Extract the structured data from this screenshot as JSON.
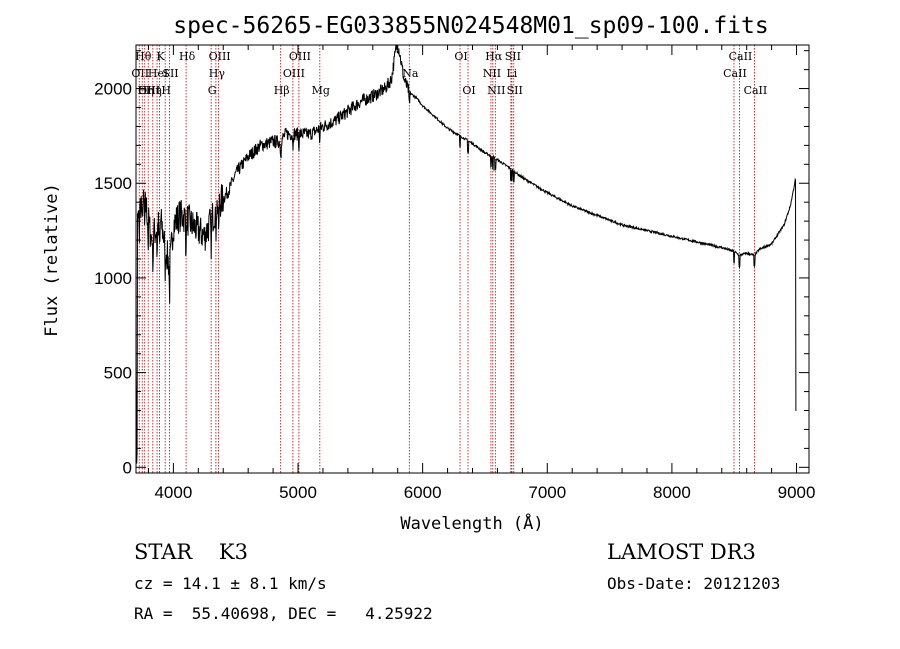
{
  "chart_data": {
    "type": "line",
    "title": "spec-56265-EG033855N024548M01_sp09-100.fits",
    "xlabel": "Wavelength (Å)",
    "ylabel": "Flux (relative)",
    "xlim": [
      3700,
      9100
    ],
    "ylim": [
      -30,
      2230
    ],
    "xticks": [
      4000,
      5000,
      6000,
      7000,
      8000,
      9000
    ],
    "yticks": [
      0,
      500,
      1000,
      1500,
      2000
    ],
    "spectrum_anchors": {
      "x": [
        3700,
        3740,
        3780,
        3820,
        3860,
        3900,
        3940,
        3970,
        4000,
        4050,
        4100,
        4150,
        4200,
        4250,
        4300,
        4350,
        4400,
        4450,
        4500,
        4600,
        4700,
        4800,
        4860,
        4900,
        5000,
        5100,
        5200,
        5300,
        5400,
        5500,
        5600,
        5700,
        5750,
        5790,
        5810,
        5850,
        5893,
        5950,
        6000,
        6100,
        6200,
        6300,
        6400,
        6500,
        6563,
        6700,
        6800,
        7000,
        7200,
        7400,
        7600,
        7800,
        8000,
        8200,
        8400,
        8500,
        8540,
        8600,
        8662,
        8700,
        8800,
        8900,
        8950,
        8980,
        8990,
        9000
      ],
      "y": [
        1250,
        1400,
        1380,
        1220,
        1250,
        1300,
        1150,
        1050,
        1280,
        1330,
        1320,
        1280,
        1250,
        1220,
        1300,
        1380,
        1420,
        1470,
        1550,
        1640,
        1700,
        1720,
        1720,
        1760,
        1760,
        1760,
        1800,
        1830,
        1880,
        1930,
        1960,
        2000,
        2050,
        2230,
        2210,
        2050,
        1980,
        1950,
        1910,
        1850,
        1790,
        1750,
        1710,
        1660,
        1640,
        1580,
        1530,
        1450,
        1380,
        1330,
        1280,
        1250,
        1220,
        1190,
        1160,
        1140,
        1120,
        1130,
        1120,
        1150,
        1180,
        1280,
        1380,
        1480,
        1520,
        1500
      ]
    },
    "emission_lines": [
      {
        "wl": 3726,
        "label": "OII",
        "row": 1
      },
      {
        "wl": 3750,
        "label": "Hθ",
        "row": 0
      },
      {
        "wl": 3770,
        "label": "Hη",
        "row": 2
      },
      {
        "wl": 3798,
        "label": "OIII",
        "row": 2
      },
      {
        "wl": 3835,
        "label": "Hη",
        "row": 2
      },
      {
        "wl": 3869,
        "label": "HeI",
        "row": 1
      },
      {
        "wl": 3889,
        "label": "K",
        "row": 0
      },
      {
        "wl": 3934,
        "label": "H",
        "row": 2
      },
      {
        "wl": 3969,
        "label": "SII",
        "row": 1
      },
      {
        "wl": 4102,
        "label": "Hδ",
        "row": 0
      },
      {
        "wl": 4303,
        "label": "G",
        "row": 2
      },
      {
        "wl": 4341,
        "label": "Hγ",
        "row": 1
      },
      {
        "wl": 4363,
        "label": "OIII",
        "row": 0
      },
      {
        "wl": 4861,
        "label": "Hβ",
        "row": 2
      },
      {
        "wl": 4959,
        "label": "OIII",
        "row": 1
      },
      {
        "wl": 5007,
        "label": "OIII",
        "row": 0
      },
      {
        "wl": 5175,
        "label": "Mg",
        "row": 2
      },
      {
        "wl": 5893,
        "label": "Na",
        "row": 1
      },
      {
        "wl": 6300,
        "label": "OI",
        "row": 0
      },
      {
        "wl": 6364,
        "label": "OI",
        "row": 2
      },
      {
        "wl": 6548,
        "label": "NII",
        "row": 1
      },
      {
        "wl": 6563,
        "label": "Hα",
        "row": 0
      },
      {
        "wl": 6583,
        "label": "NII",
        "row": 2
      },
      {
        "wl": 6708,
        "label": "Li",
        "row": 1
      },
      {
        "wl": 6716,
        "label": "SII",
        "row": 0
      },
      {
        "wl": 6731,
        "label": "SII",
        "row": 2
      },
      {
        "wl": 8498,
        "label": "CaII",
        "row": 1
      },
      {
        "wl": 8542,
        "label": "CaII",
        "row": 0
      },
      {
        "wl": 8662,
        "label": "CaII",
        "row": 2
      }
    ]
  },
  "info": {
    "class": "STAR    K3",
    "survey": "LAMOST DR3",
    "cz": "cz = 14.1 ± 8.1 km/s",
    "obs_date": "Obs-Date: 20121203",
    "radec": "RA =  55.40698, DEC =   4.25922"
  },
  "colors": {
    "axis": "#000000",
    "spectrum": "#000000",
    "lines": "#c00000"
  }
}
